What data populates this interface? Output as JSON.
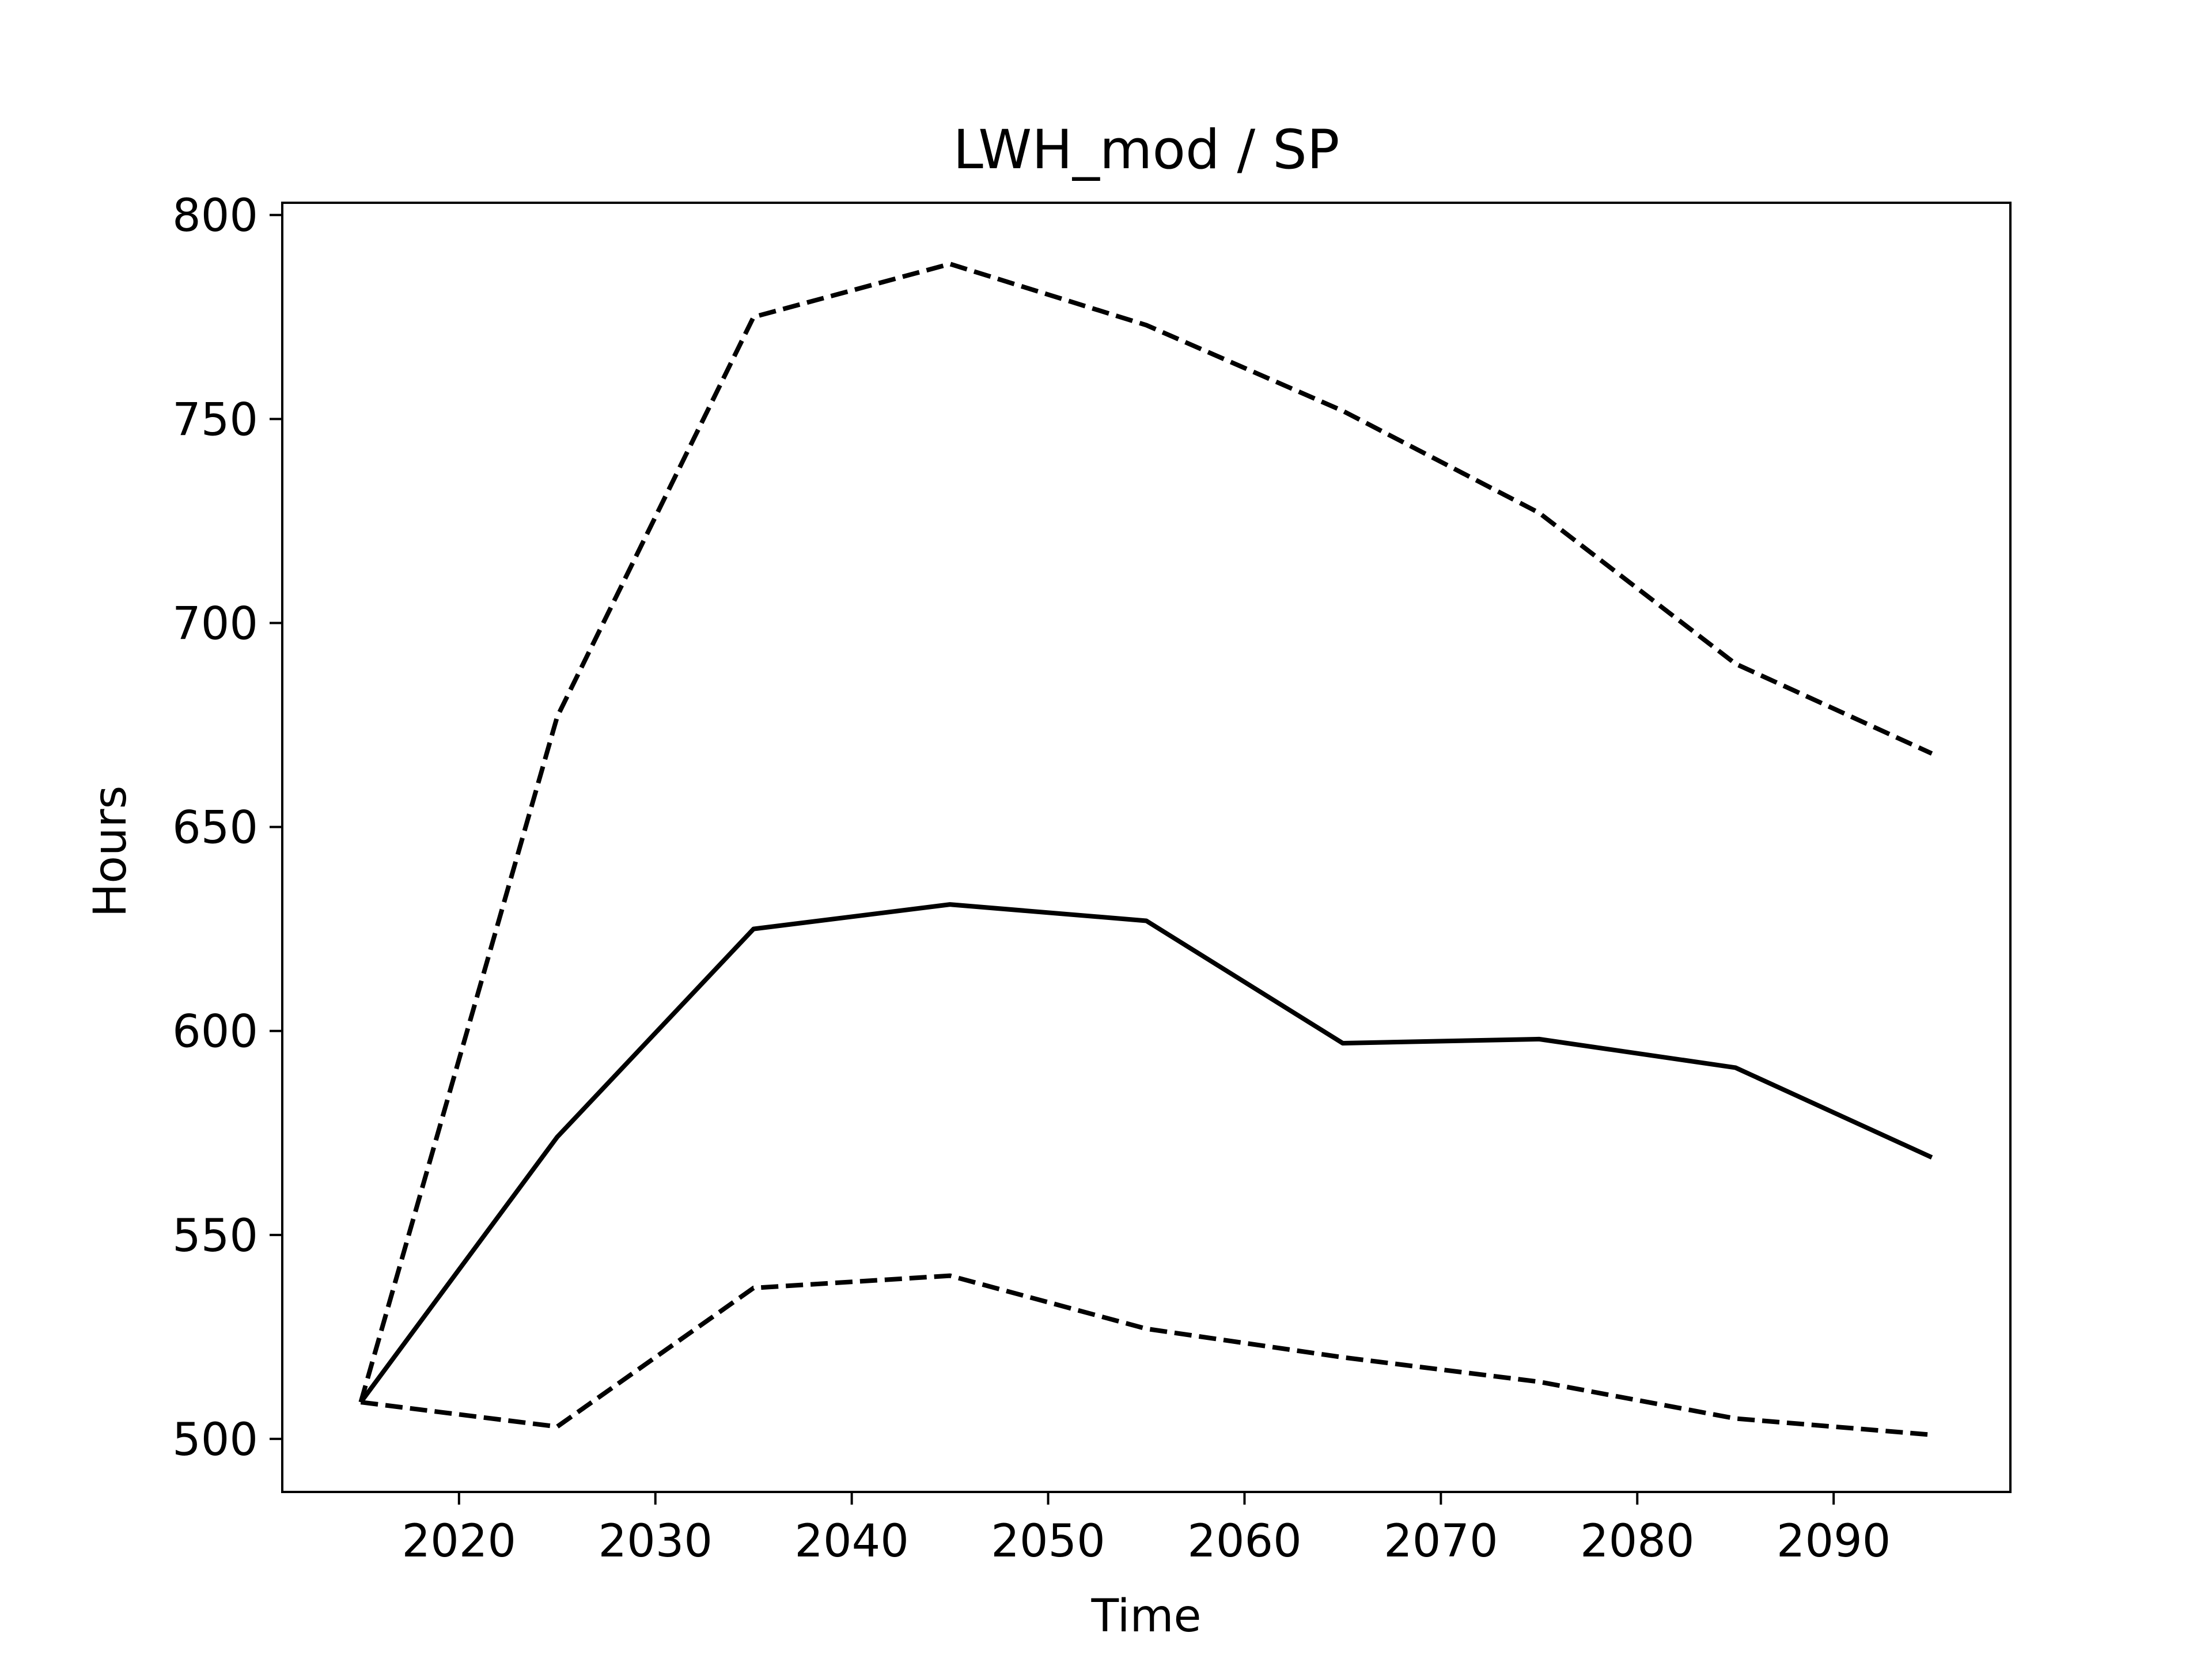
{
  "chart_data": {
    "type": "line",
    "title": "LWH_mod / SP",
    "xlabel": "Time",
    "ylabel": "Hours",
    "x": [
      2015,
      2025,
      2035,
      2045,
      2055,
      2065,
      2075,
      2085,
      2095
    ],
    "xlim": [
      2011,
      2099
    ],
    "ylim": [
      487,
      803
    ],
    "xticks": [
      2020,
      2030,
      2040,
      2050,
      2060,
      2070,
      2080,
      2090
    ],
    "yticks": [
      500,
      550,
      600,
      650,
      700,
      750,
      800
    ],
    "grid": false,
    "series": [
      {
        "line_style": "dashed",
        "color": "#000000",
        "values": [
          509,
          677,
          775,
          788,
          773,
          752,
          727,
          690,
          668
        ]
      },
      {
        "line_style": "solid",
        "color": "#000000",
        "values": [
          509,
          574,
          625,
          631,
          627,
          597,
          598,
          591,
          569
        ]
      },
      {
        "line_style": "dashed",
        "color": "#000000",
        "values": [
          509,
          503,
          537,
          540,
          527,
          520,
          514,
          505,
          501
        ]
      }
    ]
  }
}
